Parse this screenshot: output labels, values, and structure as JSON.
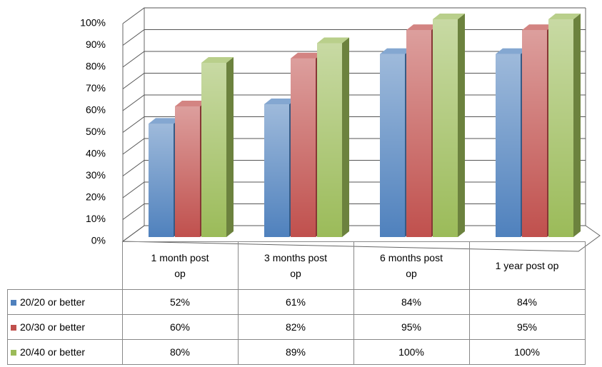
{
  "chart_data": {
    "type": "bar3d",
    "categories": [
      "1 month post op",
      "3 months post op",
      "6 months post op",
      "1 year post op"
    ],
    "series": [
      {
        "name": "20/20 or better",
        "color": "#4f81bd",
        "values": [
          52,
          61,
          84,
          84
        ],
        "value_labels": [
          "52%",
          "61%",
          "84%",
          "84%"
        ]
      },
      {
        "name": "20/30 or better",
        "color": "#c0504d",
        "values": [
          60,
          82,
          95,
          95
        ],
        "value_labels": [
          "60%",
          "82%",
          "95%",
          "95%"
        ]
      },
      {
        "name": "20/40 or better",
        "color": "#9bbb59",
        "values": [
          80,
          89,
          100,
          100
        ],
        "value_labels": [
          "80%",
          "89%",
          "100%",
          "100%"
        ]
      }
    ],
    "ylim": [
      0,
      100
    ],
    "yticks": [
      {
        "value": 0,
        "label": "0%"
      },
      {
        "value": 10,
        "label": "10%"
      },
      {
        "value": 20,
        "label": "20%"
      },
      {
        "value": 30,
        "label": "30%"
      },
      {
        "value": 40,
        "label": "40%"
      },
      {
        "value": 50,
        "label": "50%"
      },
      {
        "value": 60,
        "label": "60%"
      },
      {
        "value": 70,
        "label": "70%"
      },
      {
        "value": 80,
        "label": "80%"
      },
      {
        "value": 90,
        "label": "90%"
      },
      {
        "value": 100,
        "label": "100%"
      }
    ],
    "grid": true
  }
}
